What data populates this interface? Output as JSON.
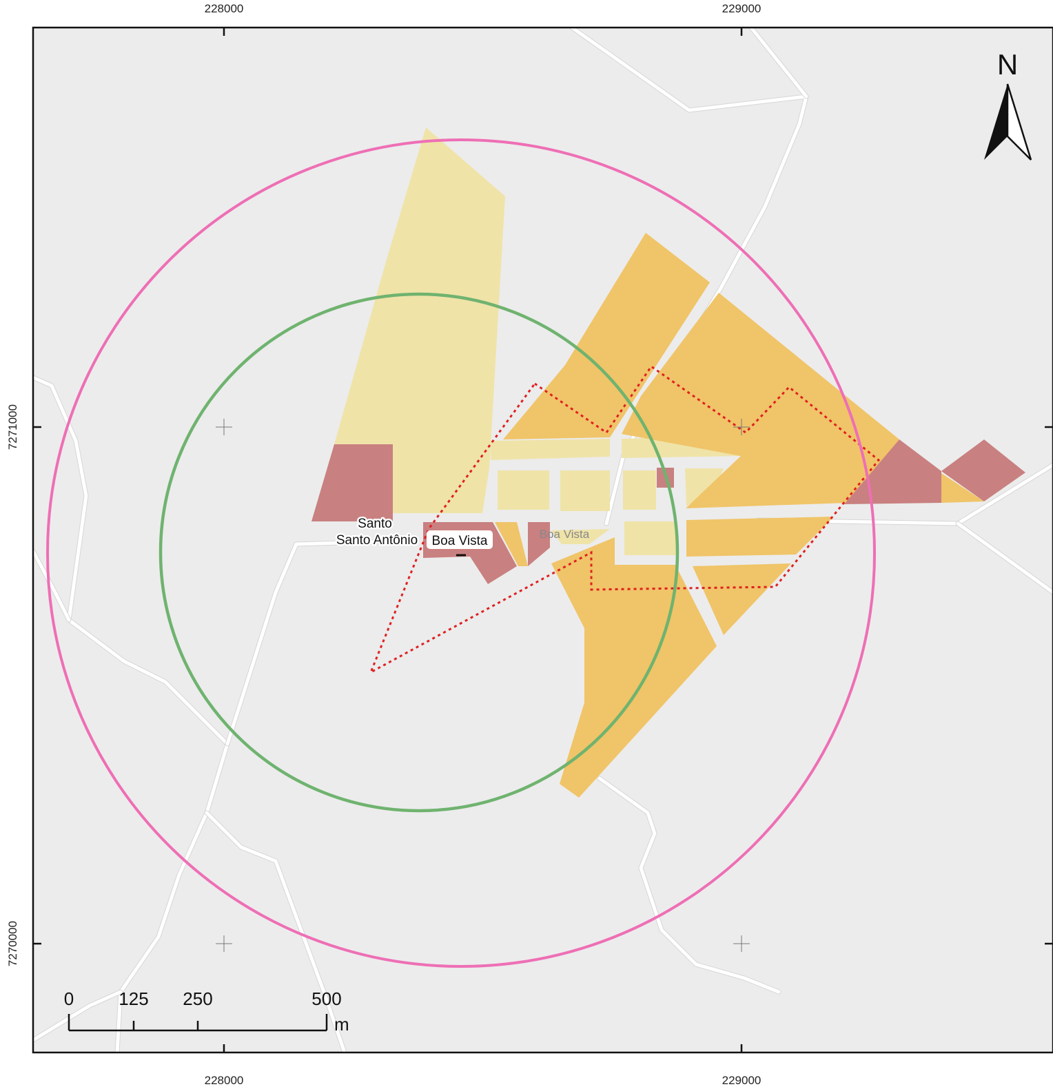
{
  "map": {
    "colors": {
      "background": "#ececec",
      "zone_light_yellow": "#efe3a8",
      "zone_orange": "#f0c468",
      "zone_rose": "#c98080",
      "road": "#ffffff",
      "outer_ring": "#ee6fb5",
      "inner_ring": "#6fb36f",
      "dotted_boundary": "#e02020"
    },
    "grid_labels": {
      "x_top": [
        "228000",
        "229000"
      ],
      "x_bottom": [
        "228000",
        "229000"
      ],
      "y_left": [
        "7271000",
        "7270000"
      ]
    },
    "north_arrow": {
      "label": "N",
      "icon": "north-arrow-icon"
    },
    "scale_bar": {
      "ticks": [
        "0",
        "125",
        "250",
        "500"
      ],
      "unit": "m"
    },
    "place_labels": {
      "santo": "Santo",
      "santo_antonio": "Santo Antônio",
      "boa_vista": "Boa Vista",
      "boa_vista_faint": "Boa Vista"
    }
  }
}
